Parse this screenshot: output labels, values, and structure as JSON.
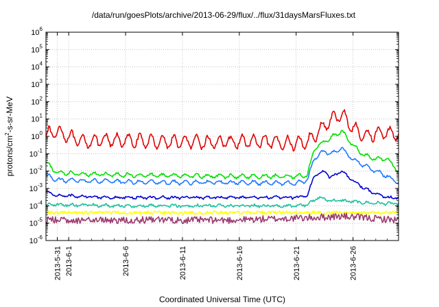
{
  "chart_data": {
    "type": "line",
    "title": "/data/run/goesPlots/archive/2013-06-29/flux/../flux/31daysMarsFluxes.txt",
    "xlabel": "Coordinated Universal Time (UTC)",
    "ylabel": {
      "base": "protons/cm",
      "sup": "2",
      "rest": "-s-sr-MeV"
    },
    "yscale": "log",
    "ylim_exp": [
      -6,
      6
    ],
    "y_ticks": [
      {
        "base": "10",
        "exp": "-6",
        "value_exp": -6
      },
      {
        "base": "10",
        "exp": "-5",
        "value_exp": -5
      },
      {
        "base": "10",
        "exp": "-4",
        "value_exp": -4
      },
      {
        "base": "10",
        "exp": "-3",
        "value_exp": -3
      },
      {
        "base": "10",
        "exp": "-2",
        "value_exp": -2
      },
      {
        "base": "10",
        "exp": "-1",
        "value_exp": -1
      },
      {
        "base": "10",
        "exp": "0",
        "value_exp": 0
      },
      {
        "base": "10",
        "exp": "1",
        "value_exp": 1
      },
      {
        "base": "10",
        "exp": "2",
        "value_exp": 2
      },
      {
        "base": "10",
        "exp": "3",
        "value_exp": 3
      },
      {
        "base": "10",
        "exp": "4",
        "value_exp": 4
      },
      {
        "base": "10",
        "exp": "5",
        "value_exp": 5
      },
      {
        "base": "10",
        "exp": "6",
        "value_exp": 6
      }
    ],
    "x_range": [
      "2013-05-30",
      "2013-06-30"
    ],
    "x_ticks": [
      {
        "label": "2013-5-31",
        "date": "2013-05-31"
      },
      {
        "label": "2013-6-1",
        "date": "2013-06-01"
      },
      {
        "label": "2013-6-6",
        "date": "2013-06-06"
      },
      {
        "label": "2013-6-11",
        "date": "2013-06-11"
      },
      {
        "label": "2013-6-16",
        "date": "2013-06-16"
      },
      {
        "label": "2013-6-21",
        "date": "2013-06-21"
      },
      {
        "label": "2013-6-26",
        "date": "2013-06-26"
      }
    ],
    "grid": true,
    "series": [
      {
        "color": "#e00000",
        "jitter": 0.12,
        "osc_amp": 0.35,
        "osc_period": 1.0,
        "points": [
          [
            "2013-05-30",
            1.2
          ],
          [
            "2013-05-31",
            2.0
          ],
          [
            "2013-06-01",
            1.0
          ],
          [
            "2013-06-02",
            0.5
          ],
          [
            "2013-06-05",
            0.6
          ],
          [
            "2013-06-09",
            0.5
          ],
          [
            "2013-06-13",
            0.45
          ],
          [
            "2013-06-17",
            0.5
          ],
          [
            "2013-06-21",
            0.4
          ],
          [
            "2013-06-22",
            0.5
          ],
          [
            "2013-06-23",
            2.0
          ],
          [
            "2013-06-24",
            8.0
          ],
          [
            "2013-06-25",
            20.0
          ],
          [
            "2013-06-26",
            3.0
          ],
          [
            "2013-06-27",
            1.0
          ],
          [
            "2013-06-28",
            1.5
          ],
          [
            "2013-06-30",
            1.5
          ]
        ]
      },
      {
        "color": "#00e000",
        "jitter": 0.06,
        "osc_amp": 0.1,
        "osc_period": 1.0,
        "points": [
          [
            "2013-05-30",
            0.03
          ],
          [
            "2013-05-31",
            0.008
          ],
          [
            "2013-06-05",
            0.006
          ],
          [
            "2013-06-10",
            0.0055
          ],
          [
            "2013-06-15",
            0.005
          ],
          [
            "2013-06-21",
            0.005
          ],
          [
            "2013-06-22",
            0.006
          ],
          [
            "2013-06-22.6",
            0.2
          ],
          [
            "2013-06-23.5",
            0.5
          ],
          [
            "2013-06-24",
            0.8
          ],
          [
            "2013-06-25",
            2.0
          ],
          [
            "2013-06-26",
            0.3
          ],
          [
            "2013-06-27",
            0.08
          ],
          [
            "2013-06-28",
            0.05
          ],
          [
            "2013-06-29",
            0.05
          ],
          [
            "2013-06-30",
            0.01
          ]
        ]
      },
      {
        "color": "#1e78ff",
        "jitter": 0.06,
        "osc_amp": 0.1,
        "osc_period": 1.0,
        "points": [
          [
            "2013-05-30",
            0.006
          ],
          [
            "2013-05-31",
            0.003
          ],
          [
            "2013-06-05",
            0.0025
          ],
          [
            "2013-06-10",
            0.0022
          ],
          [
            "2013-06-15",
            0.0022
          ],
          [
            "2013-06-21",
            0.002
          ],
          [
            "2013-06-22",
            0.003
          ],
          [
            "2013-06-22.6",
            0.06
          ],
          [
            "2013-06-23.5",
            0.15
          ],
          [
            "2013-06-24",
            0.1
          ],
          [
            "2013-06-25",
            0.2
          ],
          [
            "2013-06-26",
            0.05
          ],
          [
            "2013-06-27",
            0.02
          ],
          [
            "2013-06-28",
            0.01
          ],
          [
            "2013-06-29",
            0.005
          ],
          [
            "2013-06-30",
            0.002
          ]
        ]
      },
      {
        "color": "#0000d0",
        "jitter": 0.06,
        "osc_amp": 0.05,
        "osc_period": 1.0,
        "points": [
          [
            "2013-05-30",
            0.0006
          ],
          [
            "2013-05-31",
            0.0004
          ],
          [
            "2013-06-05",
            0.0003
          ],
          [
            "2013-06-10",
            0.0003
          ],
          [
            "2013-06-15",
            0.0003
          ],
          [
            "2013-06-21",
            0.0003
          ],
          [
            "2013-06-22",
            0.0004
          ],
          [
            "2013-06-22.6",
            0.006
          ],
          [
            "2013-06-23.5",
            0.01
          ],
          [
            "2013-06-24",
            0.004
          ],
          [
            "2013-06-25",
            0.01
          ],
          [
            "2013-06-26",
            0.003
          ],
          [
            "2013-06-27",
            0.001
          ],
          [
            "2013-06-28",
            0.0005
          ],
          [
            "2013-06-29",
            0.0003
          ],
          [
            "2013-06-30",
            0.0003
          ]
        ]
      },
      {
        "color": "#20c0a0",
        "jitter": 0.07,
        "osc_amp": 0.05,
        "osc_period": 1.0,
        "points": [
          [
            "2013-05-30",
            0.00012
          ],
          [
            "2013-06-05",
            0.0001
          ],
          [
            "2013-06-15",
            0.0001
          ],
          [
            "2013-06-21",
            0.0001
          ],
          [
            "2013-06-22",
            0.00012
          ],
          [
            "2013-06-23",
            0.0003
          ],
          [
            "2013-06-24",
            0.0002
          ],
          [
            "2013-06-25",
            0.0002
          ],
          [
            "2013-06-27",
            0.00015
          ],
          [
            "2013-06-30",
            0.00013
          ]
        ]
      },
      {
        "color": "#ffff00",
        "jitter": 0.1,
        "osc_amp": 0.0,
        "osc_period": 1.0,
        "points": [
          [
            "2013-05-30",
            4e-05
          ],
          [
            "2013-06-15",
            4e-05
          ],
          [
            "2013-06-30",
            4e-05
          ]
        ]
      },
      {
        "color": "#9b3a6e",
        "jitter": 0.2,
        "osc_amp": 0.0,
        "osc_period": 1.0,
        "points": [
          [
            "2013-05-30",
            1.5e-05
          ],
          [
            "2013-06-15",
            1.5e-05
          ],
          [
            "2013-06-22",
            2e-05
          ],
          [
            "2013-06-25",
            2.5e-05
          ],
          [
            "2013-06-30",
            1.5e-05
          ]
        ]
      }
    ]
  }
}
